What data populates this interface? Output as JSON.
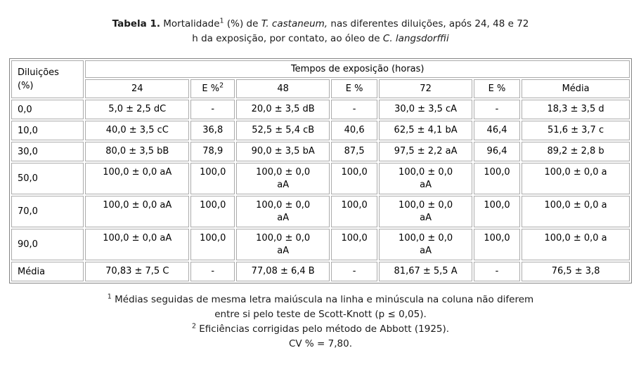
{
  "caption": {
    "line1": {
      "bold": "Tabela 1.",
      "seg1": " Mortalidade",
      "sup": "1",
      "seg2": " (%) de ",
      "italic1": "T. castaneum,",
      "seg3": " nas diferentes diluições, após 24, 48 e 72"
    },
    "line2": {
      "seg1": "h da exposição, por contato, ao óleo de ",
      "italic1": "C. langsdorffii"
    }
  },
  "table": {
    "corner": {
      "line1": "Diluições",
      "line2": "(%)"
    },
    "group_header": "Tempos de exposição (horas)",
    "columns": [
      {
        "label": "24"
      },
      {
        "label": "E %",
        "sup": "2"
      },
      {
        "label": "48"
      },
      {
        "label": "E %"
      },
      {
        "label": "72"
      },
      {
        "label": "E %"
      },
      {
        "label": "Média"
      }
    ],
    "rows": [
      {
        "label": "0,0",
        "cells": [
          "5,0 ± 2,5 dC",
          "-",
          "20,0 ± 3,5 dB",
          "-",
          "30,0 ± 3,5 cA",
          "-",
          "18,3 ± 3,5 d"
        ]
      },
      {
        "label": "10,0",
        "cells": [
          "40,0 ± 3,5 cC",
          "36,8",
          "52,5 ± 5,4 cB",
          "40,6",
          "62,5 ± 4,1 bA",
          "46,4",
          "51,6 ± 3,7 c"
        ]
      },
      {
        "label": "30,0",
        "cells": [
          "80,0 ± 3,5 bB",
          "78,9",
          "90,0 ± 3,5 bA",
          "87,5",
          "97,5 ± 2,2 aA",
          "96,4",
          "89,2 ± 2,8 b"
        ]
      },
      {
        "label": "50,0",
        "cells": [
          "100,0 ± 0,0 aA",
          "100,0",
          "100,0 ± 0,0\naA",
          "100,0",
          "100,0 ± 0,0\naA",
          "100,0",
          "100,0 ± 0,0 a"
        ]
      },
      {
        "label": "70,0",
        "cells": [
          "100,0 ± 0,0 aA",
          "100,0",
          "100,0 ± 0,0\naA",
          "100,0",
          "100,0 ± 0,0\naA",
          "100,0",
          "100,0 ± 0,0 a"
        ]
      },
      {
        "label": "90,0",
        "cells": [
          "100,0 ± 0,0 aA",
          "100,0",
          "100,0 ± 0,0\naA",
          "100,0",
          "100,0 ± 0,0\naA",
          "100,0",
          "100,0 ± 0,0 a"
        ]
      },
      {
        "label": "Média",
        "cells": [
          "70,83 ± 7,5 C",
          "-",
          "77,08 ± 6,4 B",
          "-",
          "81,67 ± 5,5 A",
          "-",
          "76,5 ± 3,8"
        ]
      }
    ]
  },
  "footnotes": {
    "fn1_sup": "1",
    "fn1_line1": " Médias seguidas de mesma letra maiúscula na linha e minúscula na coluna não diferem",
    "fn1_line2": "entre si pelo teste de Scott-Knott (p ≤ 0,05).",
    "fn2_sup": "2",
    "fn2_text": " Eficiências corrigidas pelo método de Abbott (1925).",
    "cv": "CV % = 7,80."
  }
}
